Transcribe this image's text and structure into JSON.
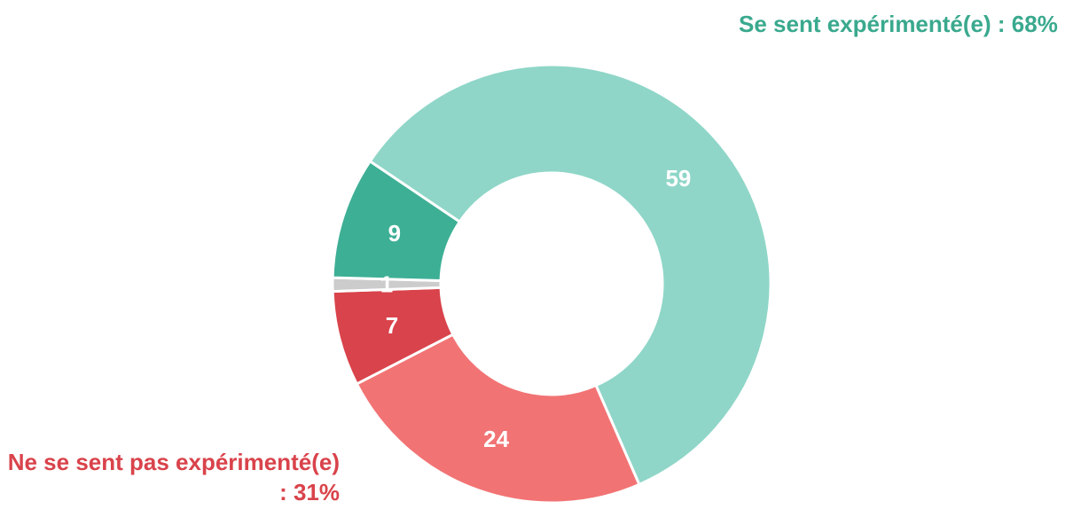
{
  "chart_data": {
    "type": "donut",
    "values": [
      59,
      24,
      7,
      1,
      9
    ],
    "colors": [
      "#8fd6c8",
      "#f27374",
      "#d9434b",
      "#cccccc",
      "#3daf95"
    ],
    "annotations": [
      {
        "text": "Se sent expérimenté(e) : 68%",
        "color": "#3aa98e"
      },
      {
        "text": "Ne se sent pas expérimenté(e) : 31%",
        "color": "#d9434b"
      }
    ]
  }
}
